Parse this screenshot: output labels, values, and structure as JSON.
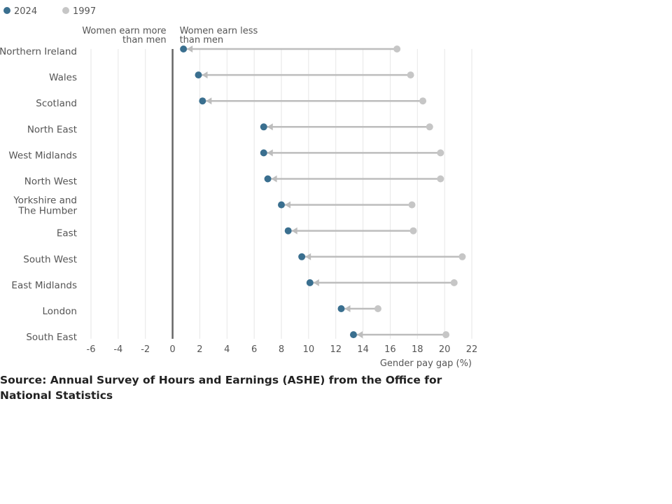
{
  "chart_data": {
    "type": "dumbbell",
    "legend": {
      "placement": "top-left",
      "items": [
        {
          "name": "2024",
          "color": "#3a6f8f"
        },
        {
          "name": "1997",
          "color": "#c6c6c6"
        }
      ]
    },
    "annotations": {
      "left_lines": [
        "Women earn more",
        "than men"
      ],
      "right_lines": [
        "Women earn less",
        "than men"
      ]
    },
    "xlabel": "Gender pay gap (%)",
    "xlim": [
      -6,
      22
    ],
    "xticks": [
      -6,
      -4,
      -2,
      0,
      2,
      4,
      6,
      8,
      10,
      12,
      14,
      16,
      18,
      20,
      22
    ],
    "grid": true,
    "categories": [
      {
        "lines": [
          "Northern Ireland"
        ],
        "v2024": 0.8,
        "v1997": 16.5
      },
      {
        "lines": [
          "Wales"
        ],
        "v2024": 1.9,
        "v1997": 17.5
      },
      {
        "lines": [
          "Scotland"
        ],
        "v2024": 2.2,
        "v1997": 18.4
      },
      {
        "lines": [
          "North East"
        ],
        "v2024": 6.7,
        "v1997": 18.9
      },
      {
        "lines": [
          "West Midlands"
        ],
        "v2024": 6.7,
        "v1997": 19.7
      },
      {
        "lines": [
          "North West"
        ],
        "v2024": 7.0,
        "v1997": 19.7
      },
      {
        "lines": [
          "Yorkshire and",
          "The Humber"
        ],
        "v2024": 8.0,
        "v1997": 17.6
      },
      {
        "lines": [
          "East"
        ],
        "v2024": 8.5,
        "v1997": 17.7
      },
      {
        "lines": [
          "South West"
        ],
        "v2024": 9.5,
        "v1997": 21.3
      },
      {
        "lines": [
          "East Midlands"
        ],
        "v2024": 10.1,
        "v1997": 20.7
      },
      {
        "lines": [
          "London"
        ],
        "v2024": 12.4,
        "v1997": 15.1
      },
      {
        "lines": [
          "South East"
        ],
        "v2024": 13.3,
        "v1997": 20.1
      }
    ],
    "colors": {
      "v2024": "#3a6f8f",
      "v1997": "#c6c6c6",
      "connector": "#bdbdbd",
      "zero_line": "#666666",
      "grid": "#e6e6e6",
      "text": "#555555"
    }
  },
  "source": "Source: Annual Survey of Hours and Earnings (ASHE) from the Office for National Statistics"
}
